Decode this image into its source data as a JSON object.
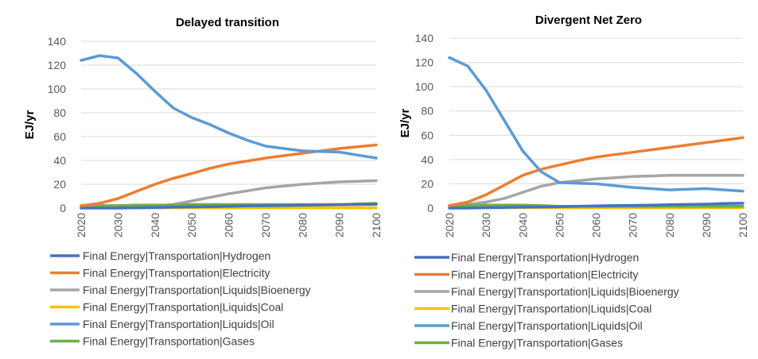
{
  "chart_data": [
    {
      "type": "line",
      "title": "Delayed transition",
      "ylabel": "EJ/yr",
      "xlabel": "",
      "x": [
        2020,
        2025,
        2030,
        2035,
        2040,
        2045,
        2050,
        2055,
        2060,
        2065,
        2070,
        2075,
        2080,
        2085,
        2090,
        2095,
        2100
      ],
      "x_ticks": [
        "2020",
        "2030",
        "2040",
        "2050",
        "2060",
        "2070",
        "2080",
        "2090",
        "2100"
      ],
      "y_ticks": [
        "0",
        "20",
        "40",
        "60",
        "80",
        "100",
        "120",
        "140"
      ],
      "ylim": [
        0,
        140
      ],
      "grid": "horizontal",
      "legend_position": "bottom",
      "series": [
        {
          "name": "Final Energy|Transportation|Hydrogen",
          "color": "#4472C4",
          "values": [
            0,
            0,
            0,
            0.3,
            0.5,
            0.8,
            1,
            1.2,
            1.5,
            1.8,
            2,
            2.2,
            2.4,
            2.6,
            2.8,
            3,
            3.2
          ]
        },
        {
          "name": "Final Energy|Transportation|Electricity",
          "color": "#ED7D31",
          "values": [
            2,
            4,
            8,
            14,
            20,
            25,
            29,
            33.5,
            37,
            39.5,
            42,
            44,
            46,
            48,
            50,
            51.5,
            53
          ]
        },
        {
          "name": "Final Energy|Transportation|Liquids|Bioenergy",
          "color": "#A5A5A5",
          "values": [
            2,
            2,
            2,
            2,
            2,
            3,
            6,
            9,
            12,
            14.5,
            17,
            18.5,
            20,
            21,
            22,
            22.5,
            23
          ]
        },
        {
          "name": "Final Energy|Transportation|Liquids|Coal",
          "color": "#FFC000",
          "values": [
            0.3,
            0.3,
            0.3,
            0.3,
            0.3,
            0.3,
            0.3,
            0.3,
            0.3,
            0.3,
            0.3,
            0.3,
            0.3,
            0.3,
            0.3,
            0.3,
            0.3
          ]
        },
        {
          "name": "Final Energy|Transportation|Liquids|Oil",
          "color": "#5B9BD5",
          "values": [
            124,
            128,
            126,
            113,
            98,
            84,
            76,
            70,
            63,
            57,
            52,
            50,
            48,
            47.5,
            47,
            44.5,
            42
          ]
        },
        {
          "name": "Final Energy|Transportation|Gases",
          "color": "#70AD47",
          "values": [
            2,
            2,
            2,
            2.5,
            2.5,
            2.5,
            3,
            3,
            3,
            3,
            3,
            3,
            3,
            3,
            3,
            3.5,
            4
          ]
        }
      ]
    },
    {
      "type": "line",
      "title": "Divergent Net Zero",
      "ylabel": "EJ/yr",
      "xlabel": "",
      "x": [
        2020,
        2025,
        2030,
        2035,
        2040,
        2045,
        2050,
        2055,
        2060,
        2065,
        2070,
        2075,
        2080,
        2085,
        2090,
        2095,
        2100
      ],
      "x_ticks": [
        "2020",
        "2030",
        "2040",
        "2050",
        "2060",
        "2070",
        "2080",
        "2090",
        "2100"
      ],
      "y_ticks": [
        "0",
        "20",
        "40",
        "60",
        "80",
        "100",
        "120",
        "140"
      ],
      "ylim": [
        0,
        140
      ],
      "grid": "horizontal",
      "legend_position": "bottom",
      "series": [
        {
          "name": "Final Energy|Transportation|Hydrogen",
          "color": "#4472C4",
          "values": [
            0,
            0,
            0.3,
            0.5,
            0.8,
            1,
            1.2,
            1.5,
            1.8,
            2,
            2.2,
            2.5,
            2.8,
            3,
            3.3,
            3.7,
            4
          ]
        },
        {
          "name": "Final Energy|Transportation|Electricity",
          "color": "#ED7D31",
          "values": [
            2,
            5,
            11,
            19,
            27,
            32,
            35.5,
            39,
            42,
            44,
            46,
            48,
            50,
            52,
            54,
            56,
            58
          ]
        },
        {
          "name": "Final Energy|Transportation|Liquids|Bioenergy",
          "color": "#A5A5A5",
          "values": [
            2,
            3,
            5,
            8,
            13,
            18,
            21,
            22.5,
            24,
            25,
            26,
            26.5,
            27,
            27,
            27,
            27,
            27
          ]
        },
        {
          "name": "Final Energy|Transportation|Liquids|Coal",
          "color": "#FFC000",
          "values": [
            0.3,
            0.3,
            0.3,
            0.3,
            0.3,
            0.3,
            0.3,
            0.3,
            0.3,
            0.3,
            0.3,
            0.3,
            0.3,
            0.3,
            0.3,
            0.3,
            0.3
          ]
        },
        {
          "name": "Final Energy|Transportation|Liquids|Oil",
          "color": "#5B9BD5",
          "values": [
            124,
            117,
            97,
            72,
            47,
            30,
            21,
            20.5,
            20,
            18.5,
            17,
            16,
            15,
            15.5,
            16,
            15,
            14
          ]
        },
        {
          "name": "Final Energy|Transportation|Gases",
          "color": "#70AD47",
          "values": [
            2,
            2,
            2.5,
            2.5,
            2.5,
            2,
            1.5,
            1.5,
            1.5,
            1.5,
            1.5,
            1.5,
            1.5,
            1.5,
            1.5,
            1.5,
            1.5
          ]
        }
      ]
    }
  ]
}
